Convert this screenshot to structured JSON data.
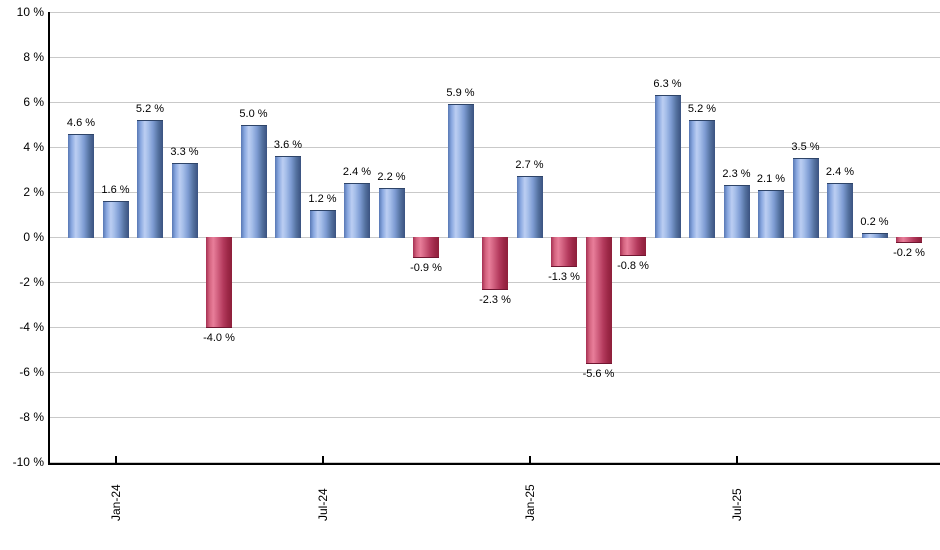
{
  "chart_data": {
    "type": "bar",
    "title": "",
    "xlabel": "",
    "ylabel": "",
    "grid": true,
    "legend": null,
    "ylim": [
      -10,
      10
    ],
    "ytick_step": 2,
    "ytick_labels": [
      "10 %",
      "8 %",
      "6 %",
      "4 %",
      "2 %",
      "0 %",
      "-2 %",
      "-4 %",
      "-6 %",
      "-8 %",
      "-10 %"
    ],
    "values": [
      4.6,
      1.6,
      5.2,
      3.3,
      -4.0,
      5.0,
      3.6,
      1.2,
      2.4,
      2.2,
      -0.9,
      5.9,
      -2.3,
      2.7,
      -1.3,
      -5.6,
      -0.8,
      6.3,
      5.2,
      2.3,
      2.1,
      3.5,
      2.4,
      0.2,
      -0.2
    ],
    "bar_labels": [
      "4.6 %",
      "1.6 %",
      "5.2 %",
      "3.3 %",
      "-4.0 %",
      "5.0 %",
      "3.6 %",
      "1.2 %",
      "2.4 %",
      "2.2 %",
      "-0.9 %",
      "5.9 %",
      "-2.3 %",
      "2.7 %",
      "-1.3 %",
      "-5.6 %",
      "-0.8 %",
      "6.3 %",
      "5.2 %",
      "2.3 %",
      "2.1 %",
      "3.5 %",
      "2.4 %",
      "0.2 %",
      "-0.2 %"
    ],
    "x_ticks": [
      {
        "bar_index": 1,
        "label": "Jan-24"
      },
      {
        "bar_index": 7,
        "label": "Jul-24"
      },
      {
        "bar_index": 13,
        "label": "Jan-25"
      },
      {
        "bar_index": 19,
        "label": "Jul-25"
      }
    ],
    "colors": {
      "positive_bar": "#7d9bd2",
      "positive_bar_edge": "#3a5280",
      "negative_bar": "#c2486a",
      "negative_bar_edge": "#8e1f3a",
      "gridline": "#c9c9c9",
      "axis": "#000000",
      "label_text": "#000000",
      "background": "#ffffff"
    }
  }
}
